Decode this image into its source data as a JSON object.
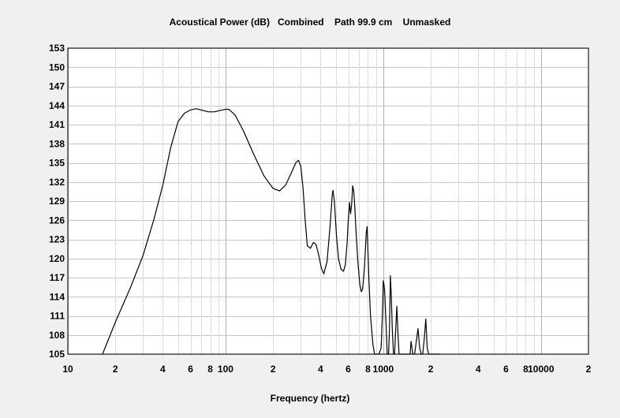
{
  "chart_data": {
    "type": "line",
    "title": "Acoustical Power (dB)   Combined    Path 99.9 cm    Unmasked",
    "xlabel": "Frequency (hertz)",
    "ylabel": "",
    "x_scale": "log",
    "xlim": [
      10,
      20000
    ],
    "ylim": [
      105,
      153
    ],
    "grid": true,
    "y_ticks": [
      153,
      150,
      147,
      144,
      141,
      138,
      135,
      132,
      129,
      126,
      123,
      120,
      117,
      114,
      111,
      108,
      105
    ],
    "x_ticks": [
      {
        "value": 10,
        "label": "10"
      },
      {
        "value": 20,
        "label": "2"
      },
      {
        "value": 40,
        "label": "4"
      },
      {
        "value": 60,
        "label": "6"
      },
      {
        "value": 80,
        "label": "8"
      },
      {
        "value": 100,
        "label": "100"
      },
      {
        "value": 200,
        "label": "2"
      },
      {
        "value": 400,
        "label": "4"
      },
      {
        "value": 600,
        "label": "6"
      },
      {
        "value": 800,
        "label": "8"
      },
      {
        "value": 1000,
        "label": "1000"
      },
      {
        "value": 2000,
        "label": "2"
      },
      {
        "value": 4000,
        "label": "4"
      },
      {
        "value": 6000,
        "label": "6"
      },
      {
        "value": 8000,
        "label": "8"
      },
      {
        "value": 10000,
        "label": "10000"
      },
      {
        "value": 20000,
        "label": "2"
      }
    ],
    "series": [
      {
        "x": [
          16.6,
          20,
          25,
          30,
          35,
          40,
          45,
          50,
          55,
          60,
          65,
          70,
          78,
          85,
          92,
          100,
          105,
          115,
          130,
          150,
          175,
          200,
          220,
          240,
          260,
          280,
          290,
          300,
          310,
          320,
          330,
          345,
          360,
          375,
          390,
          405,
          420,
          440,
          460,
          475,
          480,
          490,
          505,
          520,
          540,
          560,
          575,
          590,
          600,
          610,
          620,
          630,
          640,
          650,
          660,
          675,
          690,
          710,
          725,
          740,
          760,
          780,
          790,
          800,
          810,
          830,
          860,
          880,
          900,
          920,
          940,
          970,
          990,
          1000,
          1010,
          1020,
          1040,
          1060,
          1080,
          1095,
          1110,
          1125,
          1140,
          1160,
          1180,
          1200,
          1220,
          1240,
          1260,
          1280,
          1300,
          1320,
          1340,
          1360,
          1380,
          1400,
          1420,
          1440,
          1460,
          1480,
          1500,
          1540,
          1580,
          1620,
          1660,
          1700,
          1740,
          1780,
          1820,
          1860,
          1900,
          1940,
          1980,
          2020,
          2060,
          2100,
          2140,
          2180,
          2220,
          2260,
          2300
        ],
        "y": [
          105,
          110,
          115.5,
          120.5,
          126,
          131.5,
          137.5,
          141.5,
          142.8,
          143.3,
          143.5,
          143.3,
          143.0,
          143.0,
          143.2,
          143.4,
          143.4,
          142.5,
          140,
          136.5,
          133,
          131,
          130.6,
          131.5,
          133.3,
          135.1,
          135.4,
          134.5,
          131,
          126,
          122,
          121.6,
          122.5,
          122.2,
          120.5,
          118.5,
          117.6,
          119.5,
          125,
          130,
          130.7,
          129,
          123.5,
          120,
          118.3,
          118.0,
          119,
          122.5,
          126,
          128.8,
          127,
          128.5,
          131.4,
          130.5,
          128,
          123.5,
          119.5,
          116,
          114.8,
          115.2,
          118.5,
          124,
          125,
          121,
          117,
          111,
          106.5,
          105,
          105,
          105,
          105,
          106,
          112,
          116.5,
          116.0,
          115,
          110,
          105,
          105,
          109,
          117.3,
          114,
          109,
          105,
          105,
          109,
          112.5,
          108,
          105,
          105,
          105,
          105,
          105,
          105,
          105,
          105,
          105,
          105,
          105,
          105,
          107,
          105,
          105,
          107,
          109,
          106,
          105,
          105,
          107.5,
          110.5,
          106,
          105,
          105,
          105,
          105,
          105,
          105,
          105,
          105,
          105,
          105
        ],
        "color": "#000000"
      }
    ]
  }
}
